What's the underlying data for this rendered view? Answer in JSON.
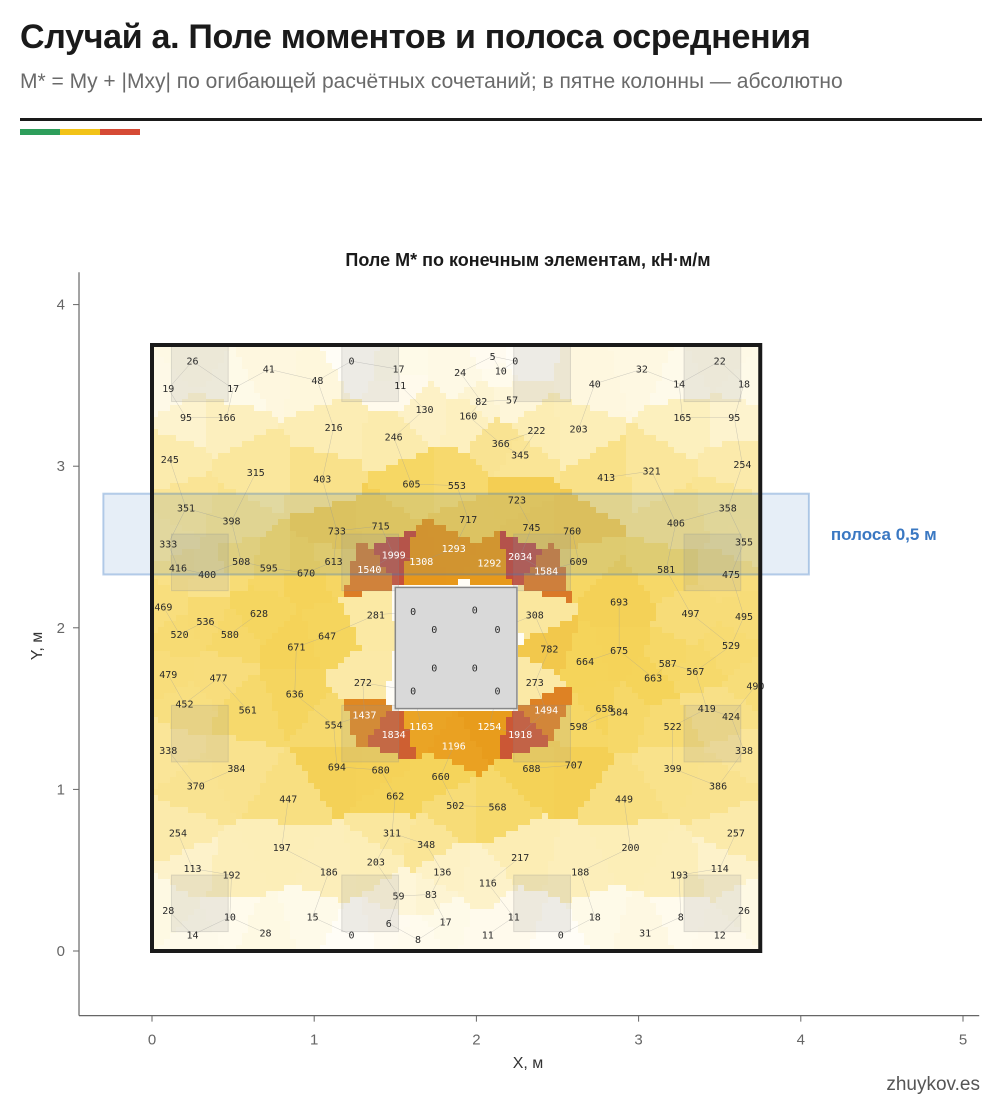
{
  "page": {
    "title": "Случай а. Поле моментов и полоса осреднения",
    "subtitle": "M* = My + |Mxy| по огибающей расчётных сочетаний; в пятне колонны — абсолютно",
    "footer": "zhuykov.es",
    "accent_colors": [
      "#2e9e5b",
      "#f2c318",
      "#d64a35"
    ]
  },
  "chart_data": {
    "type": "heatmap",
    "title": "Поле M* по конечным элементам, кН·м/м",
    "xlabel": "X, м",
    "ylabel": "Y, м",
    "xlim": [
      -0.45,
      5.1
    ],
    "ylim": [
      -0.4,
      4.2
    ],
    "xticks": [
      0,
      1,
      2,
      3,
      4,
      5
    ],
    "yticks": [
      0,
      1,
      2,
      3,
      4
    ],
    "grid": false,
    "slab": {
      "x": [
        0,
        3.75
      ],
      "y": [
        0,
        3.75
      ]
    },
    "column": {
      "x": [
        1.5,
        2.25
      ],
      "y": [
        1.5,
        2.25
      ]
    },
    "strip": {
      "label": "полоса 0,5 м",
      "x": [
        -0.3,
        4.05
      ],
      "y": [
        2.33,
        2.83
      ],
      "color": "#3a78c2"
    },
    "color_scale": {
      "stops": [
        "#fffdf6",
        "#fcedb4",
        "#f5d45a",
        "#e89a1a",
        "#c64c3a"
      ],
      "max": 2034
    },
    "support_patches": [
      {
        "x": 0.12,
        "y": 3.4
      },
      {
        "x": 1.17,
        "y": 3.4
      },
      {
        "x": 2.23,
        "y": 3.4
      },
      {
        "x": 3.28,
        "y": 3.4
      },
      {
        "x": 0.12,
        "y": 2.23
      },
      {
        "x": 1.17,
        "y": 2.23
      },
      {
        "x": 2.23,
        "y": 2.23
      },
      {
        "x": 3.28,
        "y": 2.23
      },
      {
        "x": 0.12,
        "y": 1.17
      },
      {
        "x": 1.17,
        "y": 1.17
      },
      {
        "x": 2.23,
        "y": 1.17
      },
      {
        "x": 3.28,
        "y": 1.17
      },
      {
        "x": 0.12,
        "y": 0.12
      },
      {
        "x": 1.17,
        "y": 0.12
      },
      {
        "x": 2.23,
        "y": 0.12
      },
      {
        "x": 3.28,
        "y": 0.12
      }
    ],
    "elements": [
      [
        0.25,
        3.65,
        26
      ],
      [
        1.23,
        3.65,
        0
      ],
      [
        2.24,
        3.65,
        0
      ],
      [
        3.5,
        3.65,
        22
      ],
      [
        0.1,
        3.48,
        19
      ],
      [
        0.5,
        3.48,
        17
      ],
      [
        0.72,
        3.6,
        41
      ],
      [
        1.02,
        3.53,
        48
      ],
      [
        1.52,
        3.6,
        17
      ],
      [
        1.53,
        3.5,
        11
      ],
      [
        1.9,
        3.58,
        24
      ],
      [
        2.1,
        3.68,
        5
      ],
      [
        2.15,
        3.59,
        10
      ],
      [
        2.03,
        3.4,
        82
      ],
      [
        2.22,
        3.41,
        57
      ],
      [
        2.73,
        3.51,
        40
      ],
      [
        3.02,
        3.6,
        32
      ],
      [
        3.25,
        3.51,
        14
      ],
      [
        3.65,
        3.51,
        18
      ],
      [
        0.21,
        3.3,
        95
      ],
      [
        0.46,
        3.3,
        166
      ],
      [
        1.12,
        3.24,
        216
      ],
      [
        1.49,
        3.18,
        246
      ],
      [
        1.68,
        3.35,
        130
      ],
      [
        1.95,
        3.31,
        160
      ],
      [
        2.15,
        3.14,
        366
      ],
      [
        2.37,
        3.22,
        222
      ],
      [
        2.63,
        3.23,
        203
      ],
      [
        3.27,
        3.3,
        165
      ],
      [
        3.59,
        3.3,
        95
      ],
      [
        0.11,
        3.04,
        245
      ],
      [
        0.64,
        2.96,
        315
      ],
      [
        1.05,
        2.92,
        403
      ],
      [
        1.6,
        2.89,
        605
      ],
      [
        1.88,
        2.88,
        553
      ],
      [
        2.27,
        3.07,
        345
      ],
      [
        2.8,
        2.93,
        413
      ],
      [
        3.08,
        2.97,
        321
      ],
      [
        3.64,
        3.01,
        254
      ],
      [
        0.21,
        2.74,
        351
      ],
      [
        0.49,
        2.66,
        398
      ],
      [
        1.14,
        2.6,
        733
      ],
      [
        1.41,
        2.63,
        715
      ],
      [
        1.95,
        2.67,
        717
      ],
      [
        2.25,
        2.79,
        723
      ],
      [
        2.34,
        2.62,
        745
      ],
      [
        2.59,
        2.6,
        760
      ],
      [
        3.23,
        2.65,
        406
      ],
      [
        3.55,
        2.74,
        358
      ],
      [
        0.1,
        2.52,
        333
      ],
      [
        1.49,
        2.45,
        1999
      ],
      [
        1.86,
        2.49,
        1293
      ],
      [
        2.27,
        2.44,
        2034
      ],
      [
        3.65,
        2.53,
        355
      ],
      [
        0.55,
        2.41,
        508
      ],
      [
        0.16,
        2.37,
        416
      ],
      [
        0.34,
        2.33,
        400
      ],
      [
        0.72,
        2.37,
        595
      ],
      [
        0.95,
        2.34,
        670
      ],
      [
        1.12,
        2.41,
        613
      ],
      [
        1.34,
        2.36,
        1540
      ],
      [
        1.66,
        2.41,
        1308
      ],
      [
        2.08,
        2.4,
        1292
      ],
      [
        2.43,
        2.35,
        1584
      ],
      [
        2.63,
        2.41,
        609
      ],
      [
        3.17,
        2.36,
        581
      ],
      [
        3.57,
        2.33,
        475
      ],
      [
        0.07,
        2.13,
        469
      ],
      [
        0.33,
        2.04,
        536
      ],
      [
        0.66,
        2.09,
        628
      ],
      [
        2.88,
        2.16,
        693
      ],
      [
        3.32,
        2.09,
        497
      ],
      [
        3.65,
        2.07,
        495
      ],
      [
        0.17,
        1.96,
        520
      ],
      [
        0.48,
        1.96,
        580
      ],
      [
        0.89,
        1.88,
        671
      ],
      [
        1.08,
        1.95,
        647
      ],
      [
        1.38,
        2.08,
        281
      ],
      [
        1.61,
        2.1,
        0
      ],
      [
        1.74,
        1.99,
        0
      ],
      [
        1.99,
        2.11,
        0
      ],
      [
        2.13,
        1.99,
        0
      ],
      [
        2.36,
        2.08,
        308
      ],
      [
        2.45,
        1.87,
        782
      ],
      [
        2.67,
        1.79,
        664
      ],
      [
        2.88,
        1.86,
        675
      ],
      [
        3.18,
        1.78,
        587
      ],
      [
        3.57,
        1.89,
        529
      ],
      [
        3.35,
        1.73,
        567
      ],
      [
        0.1,
        1.71,
        479
      ],
      [
        0.41,
        1.69,
        477
      ],
      [
        1.3,
        1.66,
        272
      ],
      [
        1.61,
        1.61,
        0
      ],
      [
        1.74,
        1.75,
        0
      ],
      [
        1.99,
        1.75,
        0
      ],
      [
        2.13,
        1.61,
        0
      ],
      [
        2.36,
        1.66,
        273
      ],
      [
        3.09,
        1.69,
        663
      ],
      [
        3.72,
        1.64,
        490
      ],
      [
        0.2,
        1.53,
        452
      ],
      [
        0.88,
        1.59,
        636
      ],
      [
        1.31,
        1.46,
        1437
      ],
      [
        2.43,
        1.49,
        1494
      ],
      [
        2.79,
        1.5,
        658
      ],
      [
        2.88,
        1.48,
        584
      ],
      [
        3.42,
        1.5,
        419
      ],
      [
        3.57,
        1.45,
        424
      ],
      [
        0.59,
        1.49,
        561
      ],
      [
        1.12,
        1.4,
        554
      ],
      [
        1.66,
        1.39,
        1163
      ],
      [
        2.08,
        1.39,
        1254
      ],
      [
        2.63,
        1.39,
        598
      ],
      [
        3.21,
        1.39,
        522
      ],
      [
        0.1,
        1.24,
        338
      ],
      [
        1.49,
        1.34,
        1834
      ],
      [
        1.86,
        1.27,
        1196
      ],
      [
        2.27,
        1.34,
        1918
      ],
      [
        3.65,
        1.24,
        338
      ],
      [
        0.52,
        1.13,
        384
      ],
      [
        1.14,
        1.14,
        694
      ],
      [
        1.41,
        1.12,
        680
      ],
      [
        1.78,
        1.08,
        660
      ],
      [
        2.34,
        1.13,
        688
      ],
      [
        2.6,
        1.15,
        707
      ],
      [
        3.21,
        1.13,
        399
      ],
      [
        0.27,
        1.02,
        370
      ],
      [
        1.5,
        0.96,
        662
      ],
      [
        3.49,
        1.02,
        386
      ],
      [
        0.84,
        0.94,
        447
      ],
      [
        1.87,
        0.9,
        502
      ],
      [
        2.13,
        0.89,
        568
      ],
      [
        2.91,
        0.94,
        449
      ],
      [
        0.16,
        0.73,
        254
      ],
      [
        1.48,
        0.73,
        311
      ],
      [
        1.69,
        0.66,
        348
      ],
      [
        0.8,
        0.64,
        197
      ],
      [
        2.27,
        0.58,
        217
      ],
      [
        2.95,
        0.64,
        200
      ],
      [
        3.6,
        0.73,
        257
      ],
      [
        0.25,
        0.51,
        113
      ],
      [
        0.49,
        0.47,
        192
      ],
      [
        1.38,
        0.55,
        203
      ],
      [
        1.09,
        0.49,
        186
      ],
      [
        1.79,
        0.49,
        136
      ],
      [
        2.07,
        0.42,
        116
      ],
      [
        2.64,
        0.49,
        188
      ],
      [
        3.25,
        0.47,
        193
      ],
      [
        3.5,
        0.51,
        114
      ],
      [
        1.52,
        0.34,
        59
      ],
      [
        1.72,
        0.35,
        83
      ],
      [
        0.1,
        0.25,
        28
      ],
      [
        0.48,
        0.21,
        10
      ],
      [
        0.99,
        0.21,
        15
      ],
      [
        1.46,
        0.17,
        6
      ],
      [
        1.81,
        0.18,
        17
      ],
      [
        2.23,
        0.21,
        11
      ],
      [
        2.73,
        0.21,
        18
      ],
      [
        3.26,
        0.21,
        8
      ],
      [
        3.65,
        0.25,
        26
      ],
      [
        0.25,
        0.1,
        14
      ],
      [
        0.7,
        0.11,
        28
      ],
      [
        1.23,
        0.1,
        0
      ],
      [
        1.64,
        0.07,
        8
      ],
      [
        2.07,
        0.1,
        11
      ],
      [
        2.52,
        0.1,
        0
      ],
      [
        3.04,
        0.11,
        31
      ],
      [
        3.5,
        0.1,
        12
      ]
    ]
  }
}
